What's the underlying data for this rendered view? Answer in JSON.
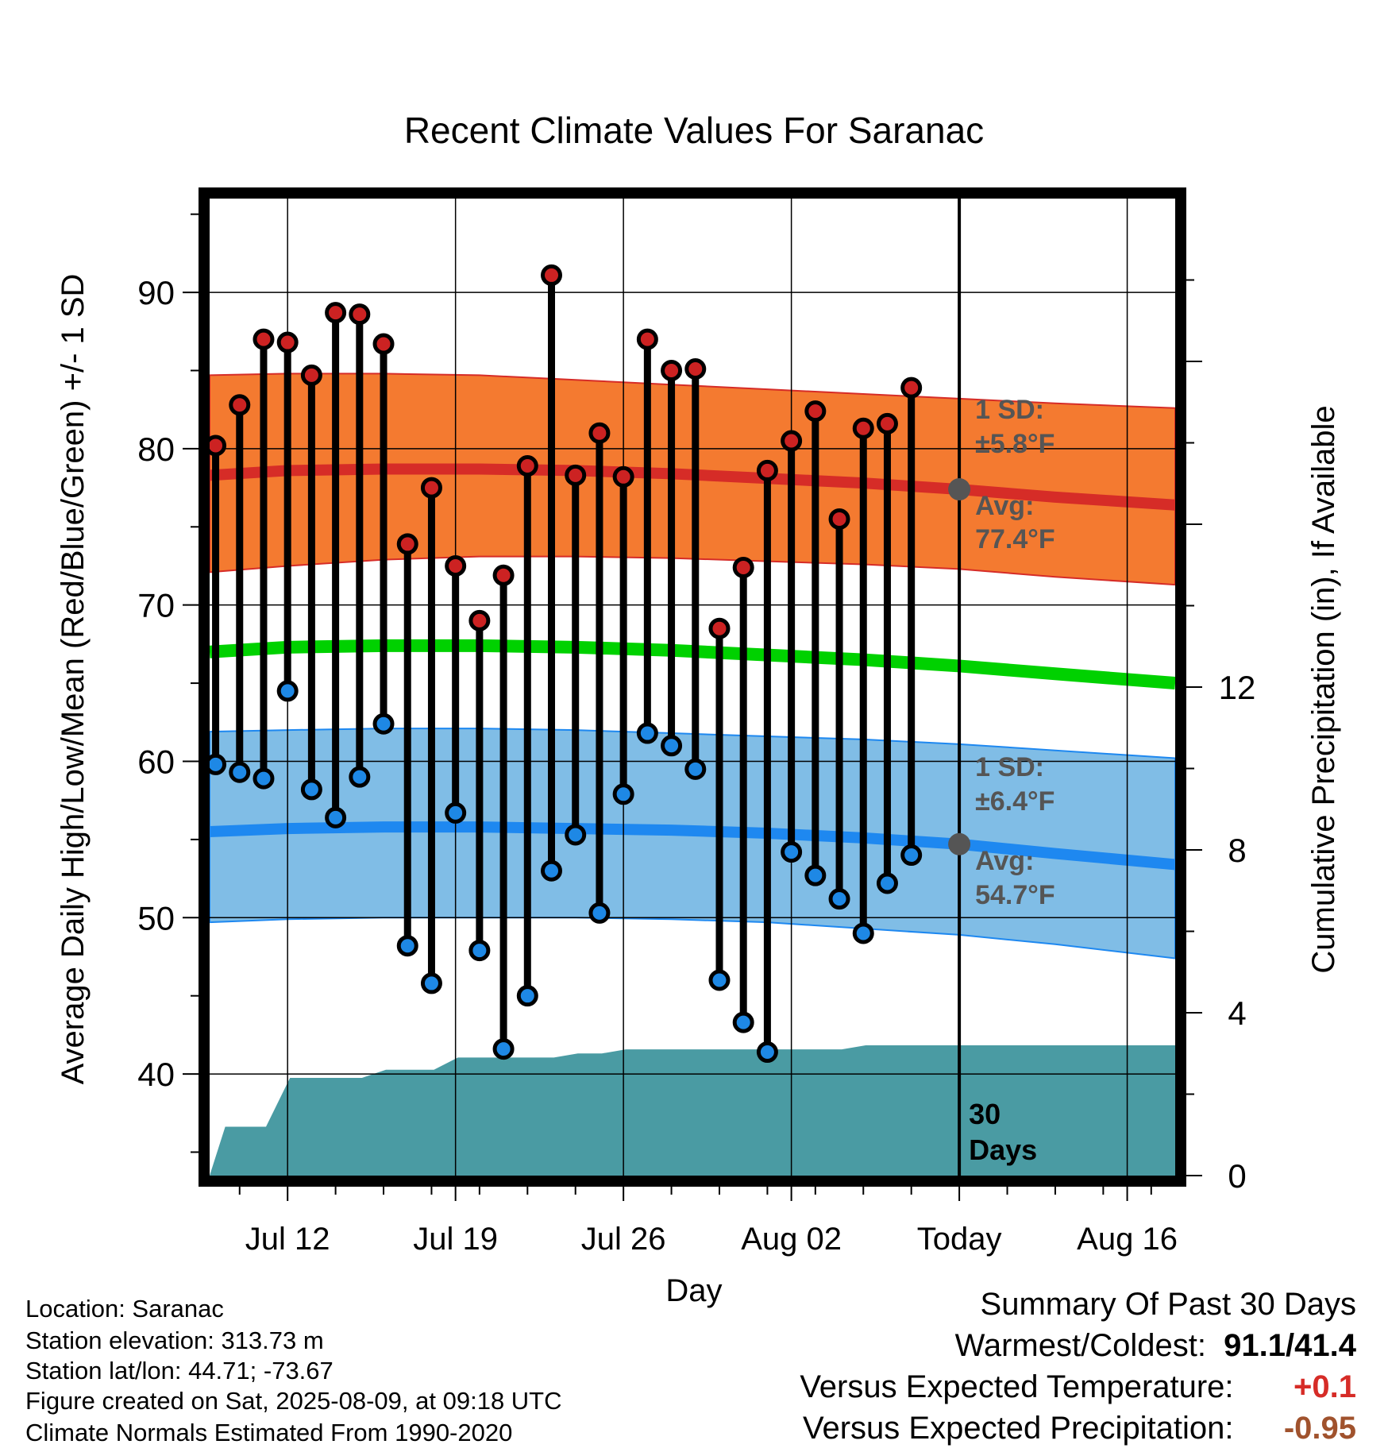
{
  "chart_data": {
    "type": "line",
    "title": "Recent Climate Values For Saranac",
    "xlabel": "Day",
    "ylabel": "Average Daily High/Low/Mean (Red/Blue/Green) +/- 1 SD",
    "y2label": "Cumulative Precipitation (in), If Available",
    "x_ticks": [
      "Jul 12",
      "Jul 19",
      "Jul 26",
      "Aug 02",
      "Today",
      "Aug 16"
    ],
    "x_tick_days": [
      12,
      19,
      26,
      33,
      40,
      47
    ],
    "y_ticks": [
      40,
      50,
      60,
      70,
      80,
      90
    ],
    "y2_ticks": [
      0,
      4,
      8,
      12
    ],
    "ylim": [
      33.5,
      96
    ],
    "y2lim": [
      0,
      24
    ],
    "xlim": [
      8.75,
      49
    ],
    "grid": true,
    "today_marker": {
      "day": 40,
      "label_line1": "30",
      "label_line2": "Days"
    },
    "daily_observed": [
      {
        "day": 9,
        "high": 80.2,
        "low": 59.8
      },
      {
        "day": 10,
        "high": 82.8,
        "low": 59.3
      },
      {
        "day": 11,
        "high": 87.0,
        "low": 58.9
      },
      {
        "day": 12,
        "high": 86.8,
        "low": 64.5
      },
      {
        "day": 13,
        "high": 84.7,
        "low": 58.2
      },
      {
        "day": 14,
        "high": 88.7,
        "low": 56.4
      },
      {
        "day": 15,
        "high": 88.6,
        "low": 59.0
      },
      {
        "day": 16,
        "high": 86.7,
        "low": 62.4
      },
      {
        "day": 17,
        "high": 73.9,
        "low": 48.2
      },
      {
        "day": 18,
        "high": 77.5,
        "low": 45.8
      },
      {
        "day": 19,
        "high": 72.5,
        "low": 56.7
      },
      {
        "day": 20,
        "high": 69.0,
        "low": 47.9
      },
      {
        "day": 21,
        "high": 71.9,
        "low": 41.6
      },
      {
        "day": 22,
        "high": 78.9,
        "low": 45.0
      },
      {
        "day": 23,
        "high": 91.1,
        "low": 53.0
      },
      {
        "day": 24,
        "high": 78.3,
        "low": 55.3
      },
      {
        "day": 25,
        "high": 81.0,
        "low": 50.3
      },
      {
        "day": 26,
        "high": 78.2,
        "low": 57.9
      },
      {
        "day": 27,
        "high": 87.0,
        "low": 61.8
      },
      {
        "day": 28,
        "high": 85.0,
        "low": 61.0
      },
      {
        "day": 29,
        "high": 85.1,
        "low": 59.5
      },
      {
        "day": 30,
        "high": 68.5,
        "low": 46.0
      },
      {
        "day": 31,
        "high": 72.4,
        "low": 43.3
      },
      {
        "day": 32,
        "high": 78.6,
        "low": 41.4
      },
      {
        "day": 33,
        "high": 80.5,
        "low": 54.2
      },
      {
        "day": 34,
        "high": 82.4,
        "low": 52.7
      },
      {
        "day": 35,
        "high": 75.5,
        "low": 51.2
      },
      {
        "day": 36,
        "high": 81.3,
        "low": 49.0
      },
      {
        "day": 37,
        "high": 81.6,
        "low": 52.2
      },
      {
        "day": 38,
        "high": 83.9,
        "low": 54.0
      }
    ],
    "normal_high": {
      "x": [
        8.75,
        12,
        16,
        20,
        24,
        28,
        32,
        36,
        40,
        44,
        49
      ],
      "mean": [
        78.3,
        78.6,
        78.7,
        78.7,
        78.6,
        78.4,
        78.1,
        77.8,
        77.4,
        76.9,
        76.4
      ],
      "sd_upper": [
        84.7,
        84.8,
        84.8,
        84.7,
        84.4,
        84.1,
        83.8,
        83.5,
        83.2,
        82.9,
        82.6
      ],
      "sd_lower": [
        72.1,
        72.5,
        72.9,
        73.1,
        73.1,
        73.0,
        72.8,
        72.6,
        72.3,
        71.8,
        71.3
      ]
    },
    "normal_low": {
      "x": [
        8.75,
        12,
        16,
        20,
        24,
        28,
        32,
        36,
        40,
        44,
        49
      ],
      "mean": [
        55.5,
        55.7,
        55.8,
        55.8,
        55.7,
        55.6,
        55.4,
        55.1,
        54.7,
        54.1,
        53.4
      ],
      "sd_upper": [
        61.9,
        62.0,
        62.1,
        62.1,
        62.0,
        61.8,
        61.6,
        61.4,
        61.1,
        60.7,
        60.2
      ],
      "sd_lower": [
        49.7,
        49.9,
        50.0,
        50.0,
        50.0,
        49.9,
        49.7,
        49.3,
        48.9,
        48.3,
        47.4
      ]
    },
    "normal_mean": {
      "x": [
        8.75,
        12,
        16,
        20,
        24,
        28,
        32,
        36,
        40,
        44,
        49
      ],
      "values": [
        67.0,
        67.3,
        67.4,
        67.4,
        67.3,
        67.1,
        66.8,
        66.5,
        66.1,
        65.6,
        65.0
      ]
    },
    "cumulative_precip": {
      "x": [
        8.75,
        9.4,
        11.1,
        12.1,
        15.1,
        16.1,
        18.1,
        19.1,
        23.1,
        24.1,
        25.1,
        26.1,
        35.1,
        36.1,
        49
      ],
      "values": [
        0,
        1.2,
        1.2,
        2.4,
        2.4,
        2.6,
        2.6,
        2.9,
        2.9,
        3.0,
        3.0,
        3.1,
        3.1,
        3.2,
        3.2
      ]
    },
    "annotations": {
      "high_sd": {
        "line1": "1 SD:",
        "line2": "±5.8°F"
      },
      "high_avg": {
        "line1": "Avg:",
        "line2": "77.4°F"
      },
      "low_sd": {
        "line1": "1 SD:",
        "line2": "±6.4°F"
      },
      "low_avg": {
        "line1": "Avg:",
        "line2": "54.7°F"
      }
    },
    "colors": {
      "high_band": "#f47a30",
      "high_line": "#d62c27",
      "low_band": "#80bde6",
      "low_line": "#1e88f0",
      "mean_line": "#00d100",
      "precip": "#4a9ba3",
      "high_dot": "#cc2222",
      "low_dot": "#1e88e5",
      "annotation": "#555555"
    }
  },
  "info": {
    "location": "Location: Saranac",
    "elevation": "Station elevation: 313.73 m",
    "latlon": "Station lat/lon: 44.71; -73.67",
    "created": "Figure created on Sat, 2025-08-09, at 09:18 UTC",
    "normals": "Climate Normals Estimated From 1990-2020"
  },
  "summary": {
    "title": "Summary Of Past 30 Days",
    "warmest_label": "Warmest/Coldest:",
    "warmest_value": "91.1/41.4",
    "temp_label": "Versus Expected Temperature:",
    "temp_value": "+0.1",
    "temp_color": "#d62c27",
    "precip_label": "Versus Expected Precipitation:",
    "precip_value": "-0.95",
    "precip_color": "#a0522d"
  }
}
